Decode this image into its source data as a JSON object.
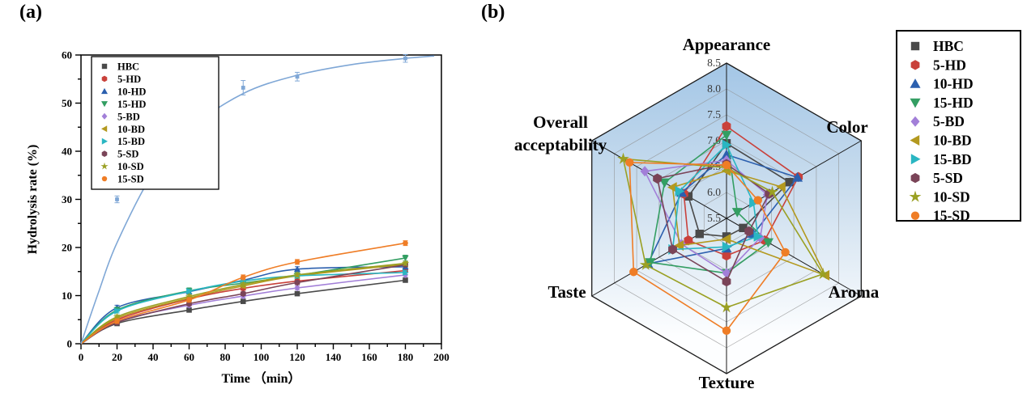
{
  "figure": {
    "panel_a_label": "(a)",
    "panel_b_label": "(b)",
    "background": "#ffffff"
  },
  "colors": {
    "axis": "#000000",
    "radar_grid": "#8f8f8f",
    "radar_frame": "#1a1a1a",
    "radar_gradient_top": "#a3c6e6",
    "radar_gradient_mid": "#cfe0ef",
    "radar_gradient_bottom": "#fdfeff",
    "legend_border": "#000000"
  },
  "series_meta": [
    {
      "name": "HBC",
      "color": "#4a4a4a",
      "marker": "square",
      "in_legend": true
    },
    {
      "name": "5-HD",
      "color": "#c9413b",
      "marker": "hexagon",
      "in_legend": true
    },
    {
      "name": "10-HD",
      "color": "#2b5fae",
      "marker": "triangle-up",
      "in_legend": true
    },
    {
      "name": "15-HD",
      "color": "#339e62",
      "marker": "triangle-down",
      "in_legend": true
    },
    {
      "name": "5-BD",
      "color": "#a27fd8",
      "marker": "diamond",
      "in_legend": true
    },
    {
      "name": "10-BD",
      "color": "#b3991f",
      "marker": "triangle-left",
      "in_legend": true
    },
    {
      "name": "15-BD",
      "color": "#2ab6c2",
      "marker": "triangle-right",
      "in_legend": true
    },
    {
      "name": "5-SD",
      "color": "#7a4458",
      "marker": "hexagon",
      "in_legend": true
    },
    {
      "name": "10-SD",
      "color": "#9aa023",
      "marker": "star",
      "in_legend": true
    },
    {
      "name": "15-SD",
      "color": "#ef7d26",
      "marker": "circle",
      "in_legend": true
    },
    {
      "name": "unlabeled-fit",
      "color": "#7fa7d6",
      "marker": "square",
      "in_legend": false
    }
  ],
  "chart_data": [
    {
      "type": "line",
      "panel": "a",
      "xlabel": "Time （min）",
      "ylabel": "Hydrolysis rate (%)",
      "xlim": [
        0,
        200
      ],
      "ylim": [
        0,
        60
      ],
      "xticks": [
        0,
        20,
        40,
        60,
        80,
        100,
        120,
        140,
        160,
        180,
        200
      ],
      "yticks": [
        0,
        10,
        20,
        30,
        40,
        50,
        60
      ],
      "x_minor_step": 10,
      "y_minor_step": 5,
      "grid": false,
      "legend_position": "top-left",
      "x": [
        0,
        20,
        60,
        90,
        120,
        180
      ],
      "series": [
        {
          "name": "HBC",
          "values": [
            0,
            4.2,
            7.0,
            8.8,
            10.4,
            13.2
          ],
          "err": 0.4
        },
        {
          "name": "5-HD",
          "values": [
            0,
            5.0,
            9.3,
            11.5,
            13.0,
            15.2
          ],
          "err": 0.4
        },
        {
          "name": "10-HD",
          "values": [
            0,
            7.5,
            10.8,
            13.2,
            15.5,
            16.0
          ],
          "err": 0.5
        },
        {
          "name": "15-HD",
          "values": [
            0,
            7.0,
            11.0,
            12.6,
            14.2,
            17.8
          ],
          "err": 0.6
        },
        {
          "name": "5-BD",
          "values": [
            0,
            4.6,
            8.0,
            9.9,
            11.6,
            14.3
          ],
          "err": 0.4
        },
        {
          "name": "10-BD",
          "values": [
            0,
            5.3,
            9.5,
            12.0,
            14.1,
            16.5
          ],
          "err": 0.4
        },
        {
          "name": "15-BD",
          "values": [
            0,
            6.8,
            10.9,
            13.0,
            14.1,
            14.8
          ],
          "err": 0.4
        },
        {
          "name": "5-SD",
          "values": [
            0,
            4.4,
            8.3,
            10.4,
            12.7,
            16.4
          ],
          "err": 0.4
        },
        {
          "name": "10-SD",
          "values": [
            0,
            5.6,
            9.8,
            12.3,
            14.3,
            16.7
          ],
          "err": 0.4
        },
        {
          "name": "15-SD",
          "values": [
            0,
            4.7,
            9.1,
            13.8,
            17.0,
            20.9
          ],
          "err": 0.5
        },
        {
          "name": "unlabeled-fit",
          "values": [
            0,
            30.0,
            45.0,
            53.2,
            55.5,
            59.3
          ],
          "err": [
            0,
            0.7,
            0.9,
            1.5,
            0.9,
            0.8
          ],
          "fit_curve_x": [
            0,
            10,
            20,
            40,
            60,
            90,
            120,
            150,
            180,
            196
          ],
          "fit_curve_y": [
            0,
            11,
            21,
            35.5,
            44.5,
            52,
            55.8,
            58,
            59.3,
            59.8
          ]
        }
      ]
    },
    {
      "type": "radar",
      "panel": "b",
      "categories": [
        "Appearance",
        "Color",
        "Aroma",
        "Texture",
        "Taste",
        "Overall acceptability"
      ],
      "rmin": 5.5,
      "rmax": 8.5,
      "rticks": [
        5.5,
        6.0,
        6.5,
        7.0,
        7.5,
        8.0,
        8.5
      ],
      "legend_position": "right",
      "series": [
        {
          "name": "HBC",
          "values": [
            6.95,
            6.9,
            5.87,
            5.85,
            6.1,
            6.35
          ]
        },
        {
          "name": "5-HD",
          "values": [
            7.28,
            7.1,
            6.35,
            6.22,
            6.35,
            6.45
          ]
        },
        {
          "name": "10-HD",
          "values": [
            6.73,
            7.08,
            6.1,
            6.08,
            7.25,
            6.5
          ]
        },
        {
          "name": "15-HD",
          "values": [
            7.11,
            5.74,
            6.43,
            6.56,
            7.2,
            6.88
          ]
        },
        {
          "name": "5-BD",
          "values": [
            6.62,
            6.41,
            6.25,
            6.56,
            6.5,
            7.32
          ]
        },
        {
          "name": "10-BD",
          "values": [
            6.42,
            6.72,
            7.7,
            5.9,
            6.55,
            6.7
          ]
        },
        {
          "name": "15-BD",
          "values": [
            6.92,
            6.1,
            6.2,
            6.05,
            6.7,
            6.55
          ]
        },
        {
          "name": "5-SD",
          "values": [
            6.55,
            6.45,
            6.0,
            6.72,
            6.7,
            7.04
          ]
        },
        {
          "name": "10-SD",
          "values": [
            6.48,
            6.52,
            7.65,
            7.22,
            7.3,
            7.8
          ]
        },
        {
          "name": "15-SD",
          "values": [
            6.53,
            6.2,
            6.81,
            7.67,
            7.57,
            7.66
          ]
        }
      ]
    }
  ]
}
